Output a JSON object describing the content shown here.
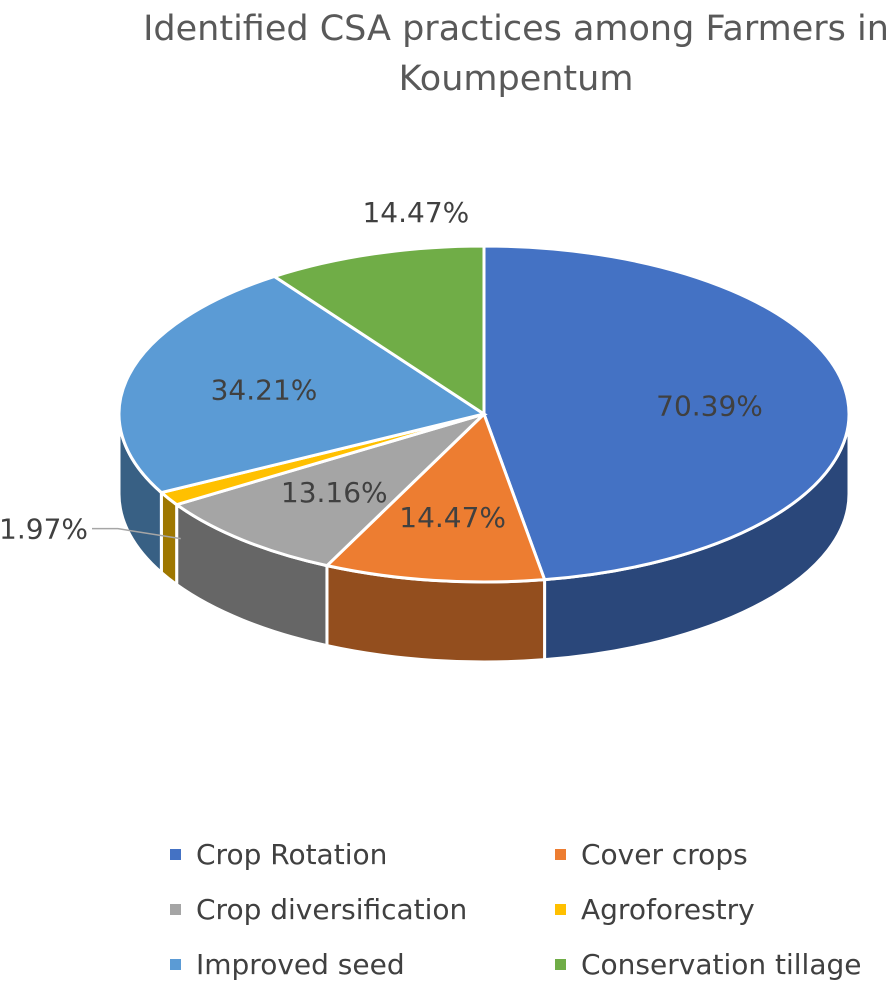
{
  "chart_data": {
    "type": "pie",
    "title": "Identified CSA practices among Farmers in Koumpentum",
    "title_lines": [
      "Identified CSA practices among Farmers in",
      "Koumpentum"
    ],
    "slices": [
      {
        "name": "Crop Rotation",
        "label": "70.39%",
        "value": 70.39,
        "color": "#4472C4"
      },
      {
        "name": "Cover crops",
        "label": "14.47%",
        "value": 14.47,
        "color": "#ED7D31"
      },
      {
        "name": "Crop diversification",
        "label": "13.16%",
        "value": 13.16,
        "color": "#A5A5A5"
      },
      {
        "name": "Agroforestry",
        "label": "1.97%",
        "value": 1.97,
        "color": "#FFC000"
      },
      {
        "name": "Improved seed",
        "label": "34.21%",
        "value": 34.21,
        "color": "#5B9BD5"
      },
      {
        "name": "Conservation tillage",
        "label": "14.47%",
        "value": 14.47,
        "color": "#70AD47"
      }
    ],
    "legend": {
      "placement": "bottom",
      "items": [
        "Crop Rotation",
        "Cover crops",
        "Crop diversification",
        "Agroforestry",
        "Improved seed",
        "Conservation tillage"
      ]
    }
  }
}
